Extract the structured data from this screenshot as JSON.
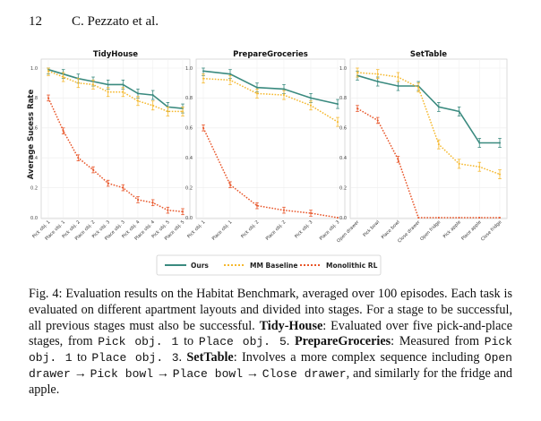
{
  "header": {
    "page_number": "12",
    "running_head": "C. Pezzato et al."
  },
  "y_axis_label": "Average Sucess Rate",
  "colors": {
    "ours": "#3a8a7f",
    "mm": "#f5b82e",
    "mono": "#e8562a"
  },
  "legend": {
    "ours": "Ours",
    "mm": "MM Baseline",
    "mono": "Monolithic RL"
  },
  "chart_data": [
    {
      "type": "line",
      "title": "TidyHouse",
      "categories": [
        "Pick obj. 1",
        "Place obj. 1",
        "Pick obj. 2",
        "Place obj. 2",
        "Pick obj. 3",
        "Place obj. 3",
        "Pick obj. 4",
        "Place obj. 4",
        "Pick obj. 5",
        "Place obj. 5"
      ],
      "ylim": [
        0,
        1.0
      ],
      "yticks": [
        "0.0",
        "0.2",
        "0.4",
        "0.6",
        "0.8",
        "1.0"
      ],
      "series": [
        {
          "name": "Ours",
          "values": [
            0.99,
            0.96,
            0.93,
            0.91,
            0.89,
            0.89,
            0.83,
            0.82,
            0.74,
            0.73
          ]
        },
        {
          "name": "MM Baseline",
          "values": [
            0.98,
            0.94,
            0.9,
            0.89,
            0.84,
            0.84,
            0.78,
            0.75,
            0.71,
            0.71
          ]
        },
        {
          "name": "Monolithic RL",
          "values": [
            0.8,
            0.58,
            0.4,
            0.32,
            0.23,
            0.2,
            0.12,
            0.1,
            0.05,
            0.04
          ]
        }
      ]
    },
    {
      "type": "line",
      "title": "PrepareGroceries",
      "categories": [
        "Pick obj. 1",
        "Place obj. 1",
        "Pick obj. 2",
        "Place obj. 2",
        "Pick obj. 3",
        "Place obj. 3"
      ],
      "ylim": [
        0,
        1.0
      ],
      "yticks": [
        "0.0",
        "0.2",
        "0.4",
        "0.6",
        "0.8",
        "1.0"
      ],
      "series": [
        {
          "name": "Ours",
          "values": [
            0.98,
            0.96,
            0.87,
            0.86,
            0.8,
            0.76
          ]
        },
        {
          "name": "MM Baseline",
          "values": [
            0.93,
            0.92,
            0.83,
            0.82,
            0.75,
            0.64
          ]
        },
        {
          "name": "Monolithic RL",
          "values": [
            0.6,
            0.22,
            0.08,
            0.05,
            0.03,
            0.0
          ]
        }
      ]
    },
    {
      "type": "line",
      "title": "SetTable",
      "categories": [
        "Open drawer",
        "Pick bowl",
        "Place bowl",
        "Close drawer",
        "Open fridge",
        "Pick apple",
        "Place apple",
        "Close fridge"
      ],
      "ylim": [
        0,
        1.0
      ],
      "yticks": [
        "0.0",
        "0.2",
        "0.4",
        "0.6",
        "0.8",
        "1.0"
      ],
      "series": [
        {
          "name": "Ours",
          "values": [
            0.95,
            0.91,
            0.88,
            0.88,
            0.74,
            0.71,
            0.5,
            0.5
          ]
        },
        {
          "name": "MM Baseline",
          "values": [
            0.97,
            0.96,
            0.94,
            0.87,
            0.49,
            0.36,
            0.34,
            0.29
          ]
        },
        {
          "name": "Monolithic RL",
          "values": [
            0.73,
            0.65,
            0.39,
            0.0,
            0.0,
            0.0,
            0.0,
            0.0
          ]
        }
      ]
    }
  ],
  "caption": {
    "p1": "Fig. 4: Evaluation results on the Habitat Benchmark, averaged over 100 episodes. Each task is evaluated on different apartment layouts and divided into stages. For a stage to be successful, all previous stages must also be successful. ",
    "b1": "Tidy-House",
    "p2": ": Evaluated over five pick-and-place stages, from ",
    "m1": "Pick obj. 1",
    "p3": " to ",
    "m2": "Place obj. 5",
    "p4": ". ",
    "b2": "PrepareGroceries",
    "p5": ": Measured from ",
    "m3": "Pick obj. 1",
    "p6": " to ",
    "m4": "Place obj. 3",
    "p7": ". ",
    "b3": "SetTable",
    "p8": ": Involves a more complex sequence including ",
    "m5": "Open drawer",
    "arrow1": " → ",
    "m6": "Pick bowl",
    "arrow2": " → ",
    "m7": "Place bowl",
    "arrow3": " → ",
    "m8": "Close drawer",
    "p9": ", and similarly for the fridge and apple."
  }
}
